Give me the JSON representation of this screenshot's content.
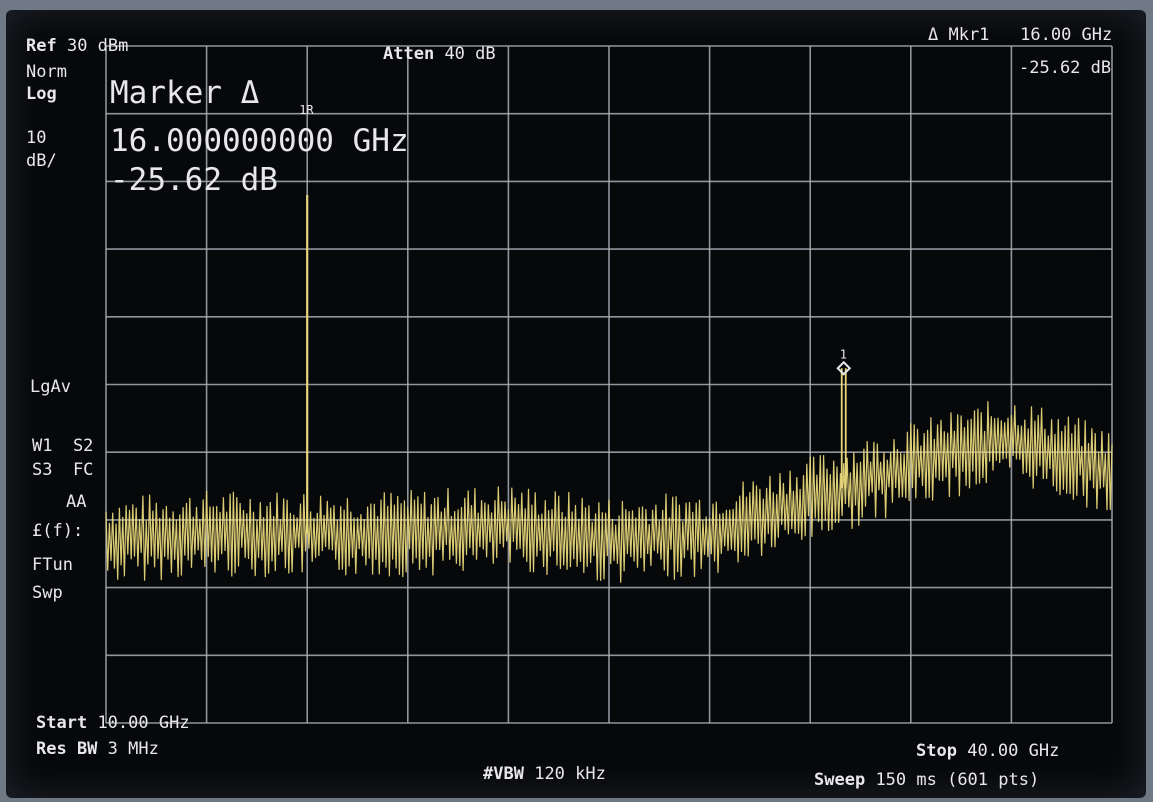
{
  "header": {
    "ref_label": "Ref",
    "ref_value": "30 dBm",
    "atten_label": "Atten",
    "atten_value": "40 dB",
    "marker_readout_label": "Δ Mkr1",
    "marker_readout_freq": "16.00 GHz",
    "marker_readout_amp": "-25.62 dB"
  },
  "left_panel": {
    "detector": "Norm",
    "scale_type": "Log",
    "scale_value": "10",
    "scale_unit": "dB/",
    "averaging": "LgAv",
    "w1s2": "W1  S2",
    "s3fc": "S3  FC",
    "aa": "AA",
    "lf": "£(f):",
    "ftun": "FTun",
    "swp": "Swp"
  },
  "marker_box": {
    "title": "Marker Δ",
    "freq": "16.000000000 GHz",
    "amp": "-25.62 dB"
  },
  "markers": {
    "ref_marker_label": "1R",
    "delta_marker_label": "1"
  },
  "footer": {
    "start_label": "Start",
    "start_value": "10.00 GHz",
    "stop_label": "Stop",
    "stop_value": "40.00 GHz",
    "rbw_label": "Res BW",
    "rbw_value": "3 MHz",
    "vbw_label": "#VBW",
    "vbw_value": "120 kHz",
    "sweep_label": "Sweep",
    "sweep_value": "150 ms (601 pts)"
  },
  "chart_data": {
    "type": "line",
    "x_start_ghz": 10,
    "x_stop_ghz": 40,
    "ref_level_dbm": 30,
    "db_per_div": 10,
    "divisions_x": 10,
    "divisions_y": 10,
    "grid": true,
    "trace_color": "#e7d77a",
    "noise_floor": {
      "x": [
        10,
        13,
        16,
        19,
        22,
        25,
        28,
        31,
        34,
        37,
        40
      ],
      "y": [
        -43,
        -42,
        -42,
        -42,
        -41,
        -43,
        -42,
        -37,
        -32,
        -28,
        -33
      ]
    },
    "peaks": [
      {
        "x": 16.0,
        "y": 8,
        "label": "1R"
      },
      {
        "x": 32.0,
        "y": -17.6,
        "label": "1"
      }
    ]
  },
  "colors": {
    "screen_bg": "#07080a",
    "grid": "#a9adb5",
    "text": "#e8e8ea",
    "trace": "#e7d77a"
  }
}
